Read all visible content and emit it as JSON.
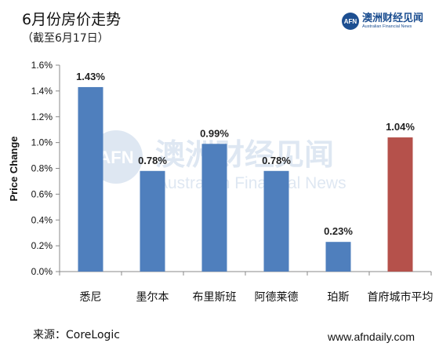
{
  "header": {
    "title": "6月份房价走势",
    "subtitle": "（截至6月17日）"
  },
  "logo": {
    "badge": "AFN",
    "name_cn": "澳洲财经见闻",
    "name_en": "Australian Financial News"
  },
  "watermark": {
    "badge": "AFN",
    "name_cn": "澳洲财经见闻",
    "name_en": "Australian Financial News"
  },
  "footer": {
    "source": "来源：CoreLogic",
    "website": "www.afndaily.com"
  },
  "colors": {
    "bar": "#4f7fbd",
    "highlight": "#b5514b",
    "logo": "#1d4f91"
  },
  "chart_data": {
    "type": "bar",
    "ylabel": "Price Change",
    "xlabel": "",
    "ylim": [
      0,
      1.6
    ],
    "yticks": [
      "0.0%",
      "0.2%",
      "0.4%",
      "0.6%",
      "0.8%",
      "1.0%",
      "1.2%",
      "1.4%",
      "1.6%"
    ],
    "categories": [
      "悉尼",
      "墨尔本",
      "布里斯班",
      "阿德莱德",
      "珀斯",
      "首府城市平均"
    ],
    "values": [
      1.43,
      0.78,
      0.99,
      0.78,
      0.23,
      1.04
    ],
    "value_labels": [
      "1.43%",
      "0.78%",
      "0.99%",
      "0.78%",
      "0.23%",
      "1.04%"
    ],
    "highlight_index": 5,
    "grid": false
  }
}
